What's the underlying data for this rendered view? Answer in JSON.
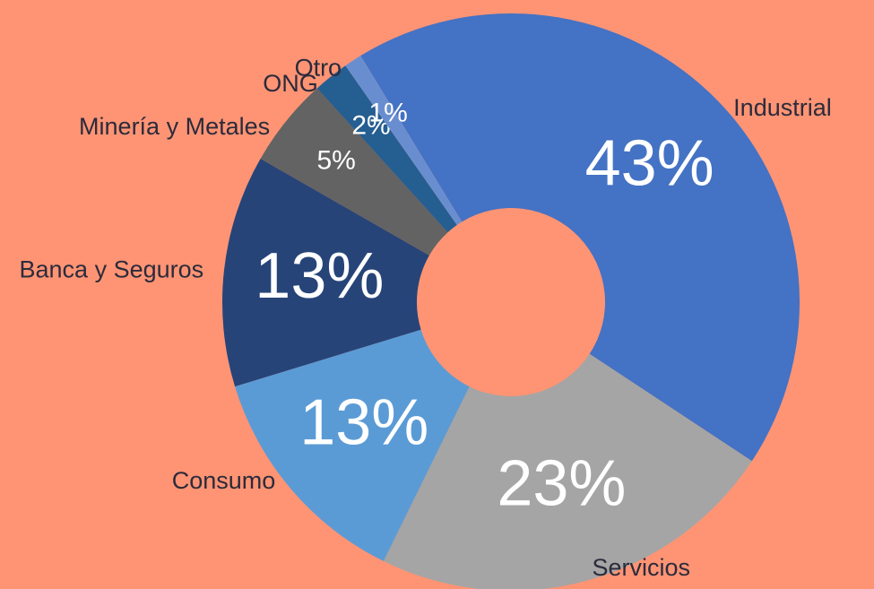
{
  "chart_data": {
    "type": "donut",
    "categories": [
      "Industrial",
      "Servicios",
      "Consumo",
      "Banca y Seguros",
      "Minería y Metales",
      "ONG",
      "Otro"
    ],
    "values": [
      43,
      23,
      13,
      13,
      5,
      2,
      1
    ],
    "value_labels": [
      "43%",
      "23%",
      "13%",
      "13%",
      "5%",
      "2%",
      "1%"
    ],
    "colors": [
      "#4472c4",
      "#a5a5a5",
      "#5b9bd5",
      "#264478",
      "#636363",
      "#255e91",
      "#698ed0"
    ],
    "background": "#fe9474"
  }
}
